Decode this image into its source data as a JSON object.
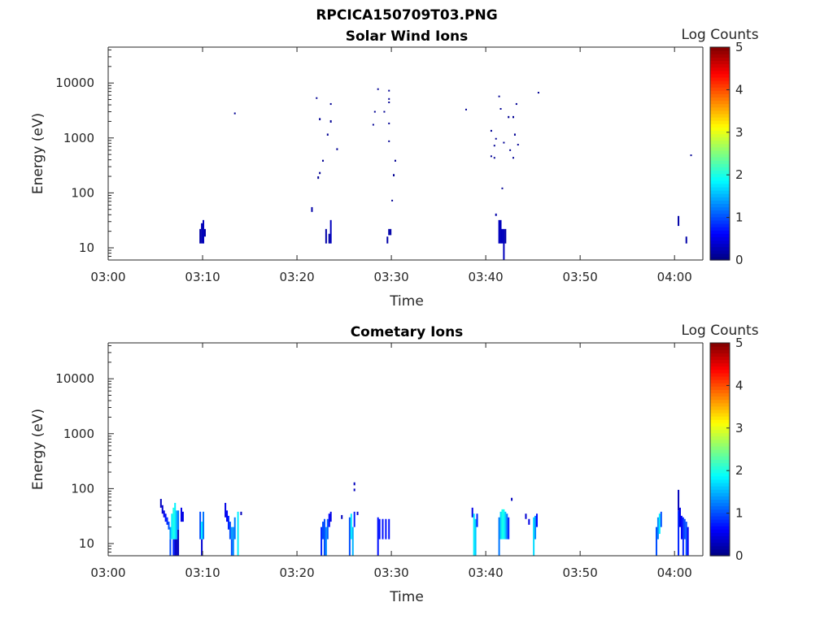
{
  "figure": {
    "title": "RPCICA150709T03.PNG"
  },
  "colormap": {
    "name": "jet",
    "min": 0,
    "max": 5,
    "ticks": [
      "0",
      "1",
      "2",
      "3",
      "4",
      "5"
    ],
    "label": "Log Counts"
  },
  "chart_data": [
    {
      "type": "heatmap",
      "title": "Solar Wind Ions",
      "xlabel": "Time",
      "ylabel": "Energy (eV)",
      "xlim": [
        "03:00",
        "04:03"
      ],
      "ylim": [
        6,
        45000
      ],
      "yscale": "log",
      "xticks": [
        "03:00",
        "03:10",
        "03:20",
        "03:30",
        "03:40",
        "03:50",
        "04:00"
      ],
      "yticks": [
        "10",
        "100",
        "1000",
        "10000"
      ],
      "colorbar_label": "Log Counts",
      "cells": [
        {
          "t": "03:09:40",
          "e0": 12,
          "e1": 22,
          "v": 0.2
        },
        {
          "t": "03:09:50",
          "e0": 12,
          "e1": 28,
          "v": 0.25
        },
        {
          "t": "03:10:00",
          "e0": 12,
          "e1": 32,
          "v": 0.3
        },
        {
          "t": "03:10:10",
          "e0": 16,
          "e1": 22,
          "v": 0.2
        },
        {
          "t": "03:13:20",
          "e0": 2700,
          "e1": 2900,
          "v": 0.1
        },
        {
          "t": "03:21:30",
          "e0": 45,
          "e1": 55,
          "v": 0.2
        },
        {
          "t": "03:22:00",
          "e0": 5200,
          "e1": 5500,
          "v": 0.1
        },
        {
          "t": "03:22:10",
          "e0": 180,
          "e1": 200,
          "v": 0.1
        },
        {
          "t": "03:22:20",
          "e0": 2100,
          "e1": 2300,
          "v": 0.1
        },
        {
          "t": "03:22:20",
          "e0": 220,
          "e1": 240,
          "v": 0.1
        },
        {
          "t": "03:22:40",
          "e0": 370,
          "e1": 400,
          "v": 0.1
        },
        {
          "t": "03:23:00",
          "e0": 12,
          "e1": 22,
          "v": 0.2
        },
        {
          "t": "03:23:10",
          "e0": 1100,
          "e1": 1200,
          "v": 0.1
        },
        {
          "t": "03:23:20",
          "e0": 12,
          "e1": 18,
          "v": 0.2
        },
        {
          "t": "03:23:30",
          "e0": 12,
          "e1": 32,
          "v": 0.3
        },
        {
          "t": "03:23:30",
          "e0": 4000,
          "e1": 4300,
          "v": 0.1
        },
        {
          "t": "03:23:30",
          "e0": 1900,
          "e1": 2100,
          "v": 0.1
        },
        {
          "t": "03:24:10",
          "e0": 600,
          "e1": 650,
          "v": 0.1
        },
        {
          "t": "03:28:00",
          "e0": 1700,
          "e1": 1800,
          "v": 0.1
        },
        {
          "t": "03:28:10",
          "e0": 2900,
          "e1": 3100,
          "v": 0.1
        },
        {
          "t": "03:28:30",
          "e0": 7600,
          "e1": 8000,
          "v": 0.1
        },
        {
          "t": "03:29:10",
          "e0": 2900,
          "e1": 3100,
          "v": 0.1
        },
        {
          "t": "03:29:30",
          "e0": 12,
          "e1": 16,
          "v": 0.2
        },
        {
          "t": "03:29:40",
          "e0": 7100,
          "e1": 7500,
          "v": 0.1
        },
        {
          "t": "03:29:40",
          "e0": 5000,
          "e1": 5300,
          "v": 0.1
        },
        {
          "t": "03:29:40",
          "e0": 4300,
          "e1": 4600,
          "v": 0.1
        },
        {
          "t": "03:29:40",
          "e0": 1800,
          "e1": 1900,
          "v": 0.1
        },
        {
          "t": "03:29:40",
          "e0": 850,
          "e1": 900,
          "v": 0.1
        },
        {
          "t": "03:29:40",
          "e0": 17,
          "e1": 22,
          "v": 0.2
        },
        {
          "t": "03:29:50",
          "e0": 17,
          "e1": 22,
          "v": 0.2
        },
        {
          "t": "03:30:00",
          "e0": 70,
          "e1": 75,
          "v": 0.1
        },
        {
          "t": "03:30:10",
          "e0": 200,
          "e1": 220,
          "v": 0.1
        },
        {
          "t": "03:30:20",
          "e0": 370,
          "e1": 400,
          "v": 0.1
        },
        {
          "t": "03:37:50",
          "e0": 3200,
          "e1": 3400,
          "v": 0.1
        },
        {
          "t": "03:40:30",
          "e0": 1300,
          "e1": 1400,
          "v": 0.1
        },
        {
          "t": "03:40:30",
          "e0": 450,
          "e1": 480,
          "v": 0.1
        },
        {
          "t": "03:40:50",
          "e0": 700,
          "e1": 750,
          "v": 0.1
        },
        {
          "t": "03:40:50",
          "e0": 420,
          "e1": 450,
          "v": 0.1
        },
        {
          "t": "03:41:00",
          "e0": 950,
          "e1": 1000,
          "v": 0.1
        },
        {
          "t": "03:41:00",
          "e0": 38,
          "e1": 42,
          "v": 0.2
        },
        {
          "t": "03:41:20",
          "e0": 5600,
          "e1": 5900,
          "v": 0.1
        },
        {
          "t": "03:41:20",
          "e0": 12,
          "e1": 32,
          "v": 0.3
        },
        {
          "t": "03:41:30",
          "e0": 3300,
          "e1": 3500,
          "v": 0.1
        },
        {
          "t": "03:41:30",
          "e0": 12,
          "e1": 32,
          "v": 0.3
        },
        {
          "t": "03:41:40",
          "e0": 120,
          "e1": 125,
          "v": 0.1
        },
        {
          "t": "03:41:40",
          "e0": 12,
          "e1": 22,
          "v": 0.3
        },
        {
          "t": "03:41:50",
          "e0": 800,
          "e1": 850,
          "v": 0.1
        },
        {
          "t": "03:41:50",
          "e0": 6,
          "e1": 22,
          "v": 0.3
        },
        {
          "t": "03:42:00",
          "e0": 12,
          "e1": 22,
          "v": 0.2
        },
        {
          "t": "03:42:20",
          "e0": 2300,
          "e1": 2500,
          "v": 0.1
        },
        {
          "t": "03:42:30",
          "e0": 580,
          "e1": 620,
          "v": 0.1
        },
        {
          "t": "03:42:50",
          "e0": 2300,
          "e1": 2500,
          "v": 0.1
        },
        {
          "t": "03:42:50",
          "e0": 420,
          "e1": 450,
          "v": 0.1
        },
        {
          "t": "03:43:00",
          "e0": 1100,
          "e1": 1200,
          "v": 0.1
        },
        {
          "t": "03:43:10",
          "e0": 4000,
          "e1": 4300,
          "v": 0.1
        },
        {
          "t": "03:43:20",
          "e0": 730,
          "e1": 780,
          "v": 0.1
        },
        {
          "t": "03:45:30",
          "e0": 6500,
          "e1": 6900,
          "v": 0.1
        },
        {
          "t": "04:00:20",
          "e0": 25,
          "e1": 38,
          "v": 0.2
        },
        {
          "t": "04:01:10",
          "e0": 12,
          "e1": 16,
          "v": 0.2
        },
        {
          "t": "04:01:40",
          "e0": 470,
          "e1": 500,
          "v": 0.1
        }
      ]
    },
    {
      "type": "heatmap",
      "title": "Cometary Ions",
      "xlabel": "Time",
      "ylabel": "Energy (eV)",
      "xlim": [
        "03:00",
        "04:03"
      ],
      "ylim": [
        6,
        45000
      ],
      "yscale": "log",
      "xticks": [
        "03:00",
        "03:10",
        "03:20",
        "03:30",
        "03:40",
        "03:50",
        "04:00"
      ],
      "yticks": [
        "10",
        "100",
        "1000",
        "10000"
      ],
      "colorbar_label": "Log Counts",
      "cells": [
        {
          "t": "03:05:30",
          "e0": 45,
          "e1": 65,
          "v": 0.3
        },
        {
          "t": "03:05:40",
          "e0": 35,
          "e1": 50,
          "v": 0.4
        },
        {
          "t": "03:05:50",
          "e0": 30,
          "e1": 40,
          "v": 0.5
        },
        {
          "t": "03:06:00",
          "e0": 25,
          "e1": 35,
          "v": 0.7
        },
        {
          "t": "03:06:10",
          "e0": 22,
          "e1": 30,
          "v": 0.8
        },
        {
          "t": "03:06:20",
          "e0": 18,
          "e1": 25,
          "v": 1.0
        },
        {
          "t": "03:06:30",
          "e0": 6,
          "e1": 12,
          "v": 1.0
        },
        {
          "t": "03:06:30",
          "e0": 12,
          "e1": 20,
          "v": 1.4
        },
        {
          "t": "03:06:40",
          "e0": 12,
          "e1": 35,
          "v": 1.8
        },
        {
          "t": "03:06:50",
          "e0": 6,
          "e1": 12,
          "v": 0.8
        },
        {
          "t": "03:06:50",
          "e0": 12,
          "e1": 45,
          "v": 2.0
        },
        {
          "t": "03:07:00",
          "e0": 6,
          "e1": 12,
          "v": 0.4
        },
        {
          "t": "03:07:00",
          "e0": 12,
          "e1": 55,
          "v": 1.8
        },
        {
          "t": "03:07:10",
          "e0": 6,
          "e1": 12,
          "v": 0.3
        },
        {
          "t": "03:07:10",
          "e0": 12,
          "e1": 40,
          "v": 1.5
        },
        {
          "t": "03:07:20",
          "e0": 6,
          "e1": 18,
          "v": 0.3
        },
        {
          "t": "03:07:20",
          "e0": 18,
          "e1": 40,
          "v": 1.2
        },
        {
          "t": "03:07:40",
          "e0": 25,
          "e1": 45,
          "v": 0.5
        },
        {
          "t": "03:07:50",
          "e0": 25,
          "e1": 38,
          "v": 0.5
        },
        {
          "t": "03:09:40",
          "e0": 12,
          "e1": 38,
          "v": 1.0
        },
        {
          "t": "03:09:50",
          "e0": 6,
          "e1": 12,
          "v": 0.4
        },
        {
          "t": "03:09:50",
          "e0": 12,
          "e1": 25,
          "v": 1.8
        },
        {
          "t": "03:10:00",
          "e0": 12,
          "e1": 38,
          "v": 1.2
        },
        {
          "t": "03:12:20",
          "e0": 30,
          "e1": 55,
          "v": 0.5
        },
        {
          "t": "03:12:30",
          "e0": 25,
          "e1": 40,
          "v": 0.6
        },
        {
          "t": "03:12:40",
          "e0": 18,
          "e1": 32,
          "v": 0.8
        },
        {
          "t": "03:12:50",
          "e0": 12,
          "e1": 25,
          "v": 1.0
        },
        {
          "t": "03:13:00",
          "e0": 6,
          "e1": 12,
          "v": 1.0
        },
        {
          "t": "03:13:00",
          "e0": 12,
          "e1": 20,
          "v": 1.4
        },
        {
          "t": "03:13:10",
          "e0": 6,
          "e1": 20,
          "v": 1.3
        },
        {
          "t": "03:13:20",
          "e0": 12,
          "e1": 30,
          "v": 1.2
        },
        {
          "t": "03:13:40",
          "e0": 6,
          "e1": 38,
          "v": 1.8
        },
        {
          "t": "03:14:00",
          "e0": 33,
          "e1": 38,
          "v": 0.3
        },
        {
          "t": "03:22:30",
          "e0": 6,
          "e1": 20,
          "v": 0.8
        },
        {
          "t": "03:22:40",
          "e0": 12,
          "e1": 25,
          "v": 1.0
        },
        {
          "t": "03:22:50",
          "e0": 6,
          "e1": 28,
          "v": 1.0
        },
        {
          "t": "03:23:00",
          "e0": 6,
          "e1": 20,
          "v": 1.3
        },
        {
          "t": "03:23:10",
          "e0": 12,
          "e1": 28,
          "v": 1.1
        },
        {
          "t": "03:23:20",
          "e0": 20,
          "e1": 35,
          "v": 0.6
        },
        {
          "t": "03:23:30",
          "e0": 25,
          "e1": 38,
          "v": 0.5
        },
        {
          "t": "03:24:40",
          "e0": 28,
          "e1": 33,
          "v": 0.3
        },
        {
          "t": "03:25:30",
          "e0": 6,
          "e1": 30,
          "v": 1.0
        },
        {
          "t": "03:25:40",
          "e0": 12,
          "e1": 35,
          "v": 1.8
        },
        {
          "t": "03:25:50",
          "e0": 6,
          "e1": 20,
          "v": 1.5
        },
        {
          "t": "03:26:00",
          "e0": 115,
          "e1": 130,
          "v": 0.3
        },
        {
          "t": "03:26:00",
          "e0": 90,
          "e1": 100,
          "v": 0.3
        },
        {
          "t": "03:26:00",
          "e0": 20,
          "e1": 38,
          "v": 0.8
        },
        {
          "t": "03:26:20",
          "e0": 33,
          "e1": 38,
          "v": 0.4
        },
        {
          "t": "03:28:30",
          "e0": 6,
          "e1": 30,
          "v": 0.7
        },
        {
          "t": "03:28:40",
          "e0": 12,
          "e1": 28,
          "v": 0.7
        },
        {
          "t": "03:29:00",
          "e0": 12,
          "e1": 28,
          "v": 0.7
        },
        {
          "t": "03:29:20",
          "e0": 12,
          "e1": 28,
          "v": 0.7
        },
        {
          "t": "03:29:40",
          "e0": 12,
          "e1": 28,
          "v": 0.7
        },
        {
          "t": "03:38:30",
          "e0": 30,
          "e1": 45,
          "v": 0.5
        },
        {
          "t": "03:38:40",
          "e0": 6,
          "e1": 35,
          "v": 1.8
        },
        {
          "t": "03:38:50",
          "e0": 6,
          "e1": 28,
          "v": 1.6
        },
        {
          "t": "03:39:00",
          "e0": 20,
          "e1": 35,
          "v": 0.8
        },
        {
          "t": "03:41:20",
          "e0": 6,
          "e1": 30,
          "v": 1.2
        },
        {
          "t": "03:41:30",
          "e0": 12,
          "e1": 38,
          "v": 1.7
        },
        {
          "t": "03:41:40",
          "e0": 12,
          "e1": 42,
          "v": 2.0
        },
        {
          "t": "03:41:50",
          "e0": 12,
          "e1": 42,
          "v": 1.9
        },
        {
          "t": "03:42:00",
          "e0": 12,
          "e1": 38,
          "v": 1.6
        },
        {
          "t": "03:42:10",
          "e0": 12,
          "e1": 35,
          "v": 1.2
        },
        {
          "t": "03:42:20",
          "e0": 12,
          "e1": 30,
          "v": 0.8
        },
        {
          "t": "03:42:40",
          "e0": 60,
          "e1": 68,
          "v": 0.3
        },
        {
          "t": "03:44:10",
          "e0": 28,
          "e1": 35,
          "v": 0.4
        },
        {
          "t": "03:44:30",
          "e0": 22,
          "e1": 28,
          "v": 0.5
        },
        {
          "t": "03:45:00",
          "e0": 6,
          "e1": 30,
          "v": 1.7
        },
        {
          "t": "03:45:10",
          "e0": 12,
          "e1": 32,
          "v": 1.3
        },
        {
          "t": "03:45:20",
          "e0": 20,
          "e1": 35,
          "v": 0.7
        },
        {
          "t": "03:58:00",
          "e0": 6,
          "e1": 20,
          "v": 1.0
        },
        {
          "t": "03:58:10",
          "e0": 12,
          "e1": 30,
          "v": 1.3
        },
        {
          "t": "03:58:20",
          "e0": 15,
          "e1": 35,
          "v": 1.8
        },
        {
          "t": "03:58:30",
          "e0": 20,
          "e1": 38,
          "v": 1.0
        },
        {
          "t": "04:00:20",
          "e0": 40,
          "e1": 95,
          "v": 0.3
        },
        {
          "t": "04:00:20",
          "e0": 6,
          "e1": 40,
          "v": 0.8
        },
        {
          "t": "04:00:30",
          "e0": 20,
          "e1": 45,
          "v": 0.5
        },
        {
          "t": "04:00:40",
          "e0": 12,
          "e1": 32,
          "v": 0.6
        },
        {
          "t": "04:00:50",
          "e0": 6,
          "e1": 30,
          "v": 0.8
        },
        {
          "t": "04:01:00",
          "e0": 12,
          "e1": 28,
          "v": 1.0
        },
        {
          "t": "04:01:10",
          "e0": 6,
          "e1": 25,
          "v": 1.0
        },
        {
          "t": "04:01:20",
          "e0": 6,
          "e1": 20,
          "v": 0.6
        }
      ]
    }
  ]
}
